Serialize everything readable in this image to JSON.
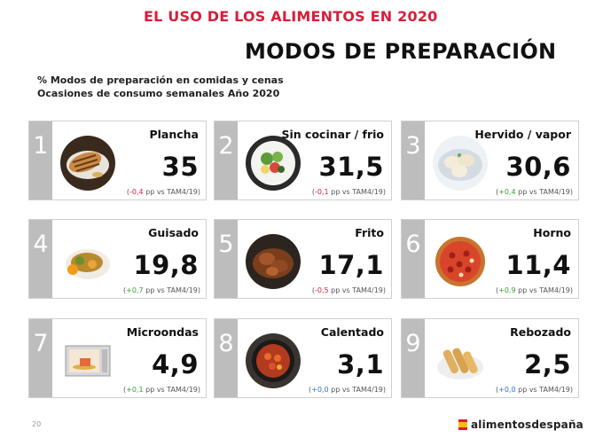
{
  "header": {
    "topline": "EL USO DE LOS ALIMENTOS EN 2020",
    "title": "MODOS DE PREPARACIÓN",
    "subtitle_1": "% Modos de preparación en comidas y cenas",
    "subtitle_2": "Ocasiones de consumo semanales Año 2020"
  },
  "cards": [
    {
      "rank": "1",
      "name": "Plancha",
      "value": "35",
      "delta": "-0,4",
      "delta_sign": "neg",
      "suffix": " pp vs TAM4/19)",
      "photo": "grilled-chicken-photo"
    },
    {
      "rank": "2",
      "name": "Sin cocinar / frio",
      "value": "31,5",
      "delta": "-0,1",
      "delta_sign": "neg",
      "suffix": " pp vs TAM4/19)",
      "photo": "salad-photo"
    },
    {
      "rank": "3",
      "name": "Hervido / vapor",
      "value": "30,6",
      "delta": "+0,4",
      "delta_sign": "pos",
      "suffix": " pp vs TAM4/19)",
      "photo": "dumplings-photo"
    },
    {
      "rank": "4",
      "name": "Guisado",
      "value": "19,8",
      "delta": "+0,7",
      "delta_sign": "pos",
      "suffix": " pp vs TAM4/19)",
      "photo": "stew-photo"
    },
    {
      "rank": "5",
      "name": "Frito",
      "value": "17,1",
      "delta": "-0,5",
      "delta_sign": "neg",
      "suffix": " pp vs TAM4/19)",
      "photo": "fried-chicken-photo"
    },
    {
      "rank": "6",
      "name": "Horno",
      "value": "11,4",
      "delta": "+0,9",
      "delta_sign": "pos",
      "suffix": " pp vs TAM4/19)",
      "photo": "pizza-photo"
    },
    {
      "rank": "7",
      "name": "Microondas",
      "value": "4,9",
      "delta": "+0,1",
      "delta_sign": "pos",
      "suffix": " pp vs TAM4/19)",
      "photo": "microwave-photo"
    },
    {
      "rank": "8",
      "name": "Calentado",
      "value": "3,1",
      "delta": "+0,0",
      "delta_sign": "zero",
      "suffix": " pp vs TAM4/19)",
      "photo": "heated-pan-photo"
    },
    {
      "rank": "9",
      "name": "Rebozado",
      "value": "2,5",
      "delta": "+0,0",
      "delta_sign": "zero",
      "suffix": " pp vs TAM4/19)",
      "photo": "battered-food-photo"
    }
  ],
  "footer": {
    "page_number": "20",
    "brand": "alimentosdespaña"
  },
  "colors": {
    "accent_red": "#d81e3a",
    "positive_green": "#3a9a3a",
    "neutral_blue": "#2f6fd6",
    "rank_grey": "#bdbdbd"
  }
}
